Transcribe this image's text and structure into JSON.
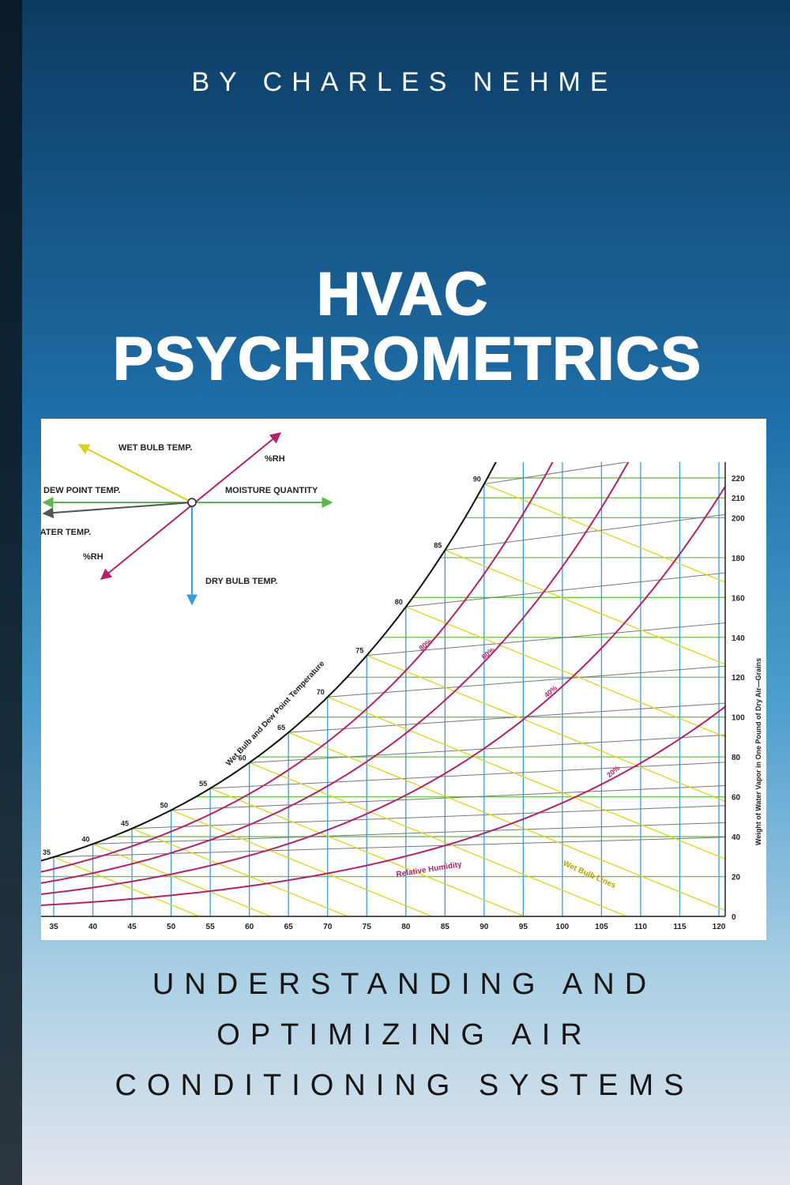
{
  "author": "BY CHARLES NEHME",
  "title": [
    "HVAC",
    "PSYCHROMETRICS"
  ],
  "subtitle": [
    "UNDERSTANDING AND",
    "OPTIMIZING AIR",
    "CONDITIONING SYSTEMS"
  ],
  "figure": {
    "legend": {
      "wet_bulb": "WET BULB TEMP.",
      "rh_upper": "%RH",
      "dew_point": "DEW POINT TEMP.",
      "moisture": "MOISTURE QUANTITY",
      "water_temp": "WATER TEMP.",
      "rh_lower": "%RH",
      "dry_bulb": "DRY BULB TEMP."
    },
    "curve_label": "Wet Bulb and Dew Point Temperature",
    "rh_curve_label": "Relative Humidity",
    "wet_bulb_lines_label": "Wet Bulb Lines",
    "grain_axis_label": "Weight of Water Vapor in One Pound of Dry Air—Grains",
    "dry_bulb_ticks": [
      35,
      40,
      45,
      50,
      55,
      60,
      65,
      70,
      75,
      80,
      85,
      90,
      95,
      100,
      105,
      110,
      115,
      120
    ],
    "grain_ticks": [
      0,
      20,
      40,
      60,
      80,
      100,
      120,
      140,
      160,
      180,
      200,
      210,
      220
    ],
    "saturation_labels": [
      35,
      40,
      45,
      50,
      55,
      60,
      65,
      70,
      75,
      80,
      85,
      90
    ],
    "rh": [
      {
        "value": 80,
        "label": "80%"
      },
      {
        "value": 60,
        "label": "60%"
      },
      {
        "value": 40,
        "label": "40%"
      },
      {
        "value": 20,
        "label": "20%"
      }
    ]
  }
}
